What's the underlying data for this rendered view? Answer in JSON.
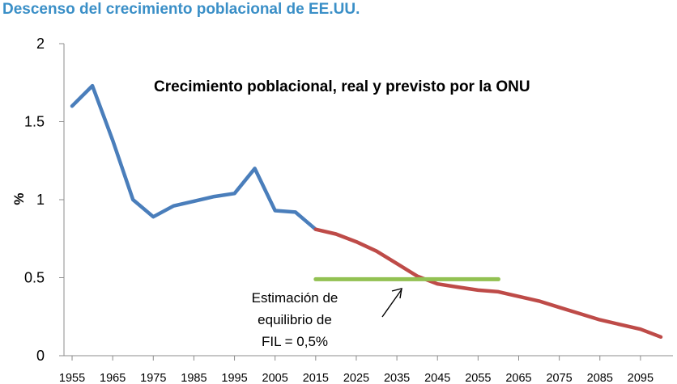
{
  "page": {
    "title": "Descenso del crecimiento poblacional de EE.UU."
  },
  "chart_data": {
    "type": "line",
    "title": "Crecimiento poblacional, real y previsto por la ONU",
    "xlabel": "",
    "ylabel": "%",
    "xlim": [
      1953,
      2103
    ],
    "ylim": [
      0,
      2
    ],
    "yticks": [
      0,
      0.5,
      1,
      1.5,
      2
    ],
    "ytick_labels": [
      "0",
      "0.5",
      "1",
      "1.5",
      "2"
    ],
    "xticks": [
      1955,
      1965,
      1975,
      1985,
      1995,
      2005,
      2015,
      2025,
      2035,
      2045,
      2055,
      2065,
      2075,
      2085,
      2095
    ],
    "xtick_labels": [
      "1955",
      "1965",
      "1975",
      "1985",
      "1995",
      "2005",
      "2015",
      "2025",
      "2035",
      "2045",
      "2055",
      "2065",
      "2075",
      "2085",
      "2095"
    ],
    "series": [
      {
        "name": "Real",
        "color": "#4a7ebb",
        "x": [
          1955,
          1960,
          1965,
          1970,
          1975,
          1980,
          1985,
          1990,
          1995,
          2000,
          2005,
          2010,
          2015
        ],
        "values": [
          1.6,
          1.73,
          1.38,
          1.0,
          0.89,
          0.96,
          0.99,
          1.02,
          1.04,
          1.2,
          0.93,
          0.92,
          0.81
        ]
      },
      {
        "name": "Previsto por la ONU",
        "color": "#be4b48",
        "x": [
          2015,
          2020,
          2025,
          2030,
          2035,
          2040,
          2045,
          2050,
          2055,
          2060,
          2065,
          2070,
          2075,
          2080,
          2085,
          2090,
          2095,
          2100
        ],
        "values": [
          0.81,
          0.78,
          0.73,
          0.67,
          0.59,
          0.51,
          0.46,
          0.44,
          0.42,
          0.41,
          0.38,
          0.35,
          0.31,
          0.27,
          0.23,
          0.2,
          0.17,
          0.12
        ]
      }
    ],
    "reference_line": {
      "name": "Estimación de equilibrio de FIL",
      "color": "#92c152",
      "y": 0.49,
      "x_start": 2015,
      "x_end": 2060
    },
    "annotation": {
      "lines": [
        "Estimación de",
        "equilibrio de",
        "FIL = 0,5%"
      ]
    }
  }
}
